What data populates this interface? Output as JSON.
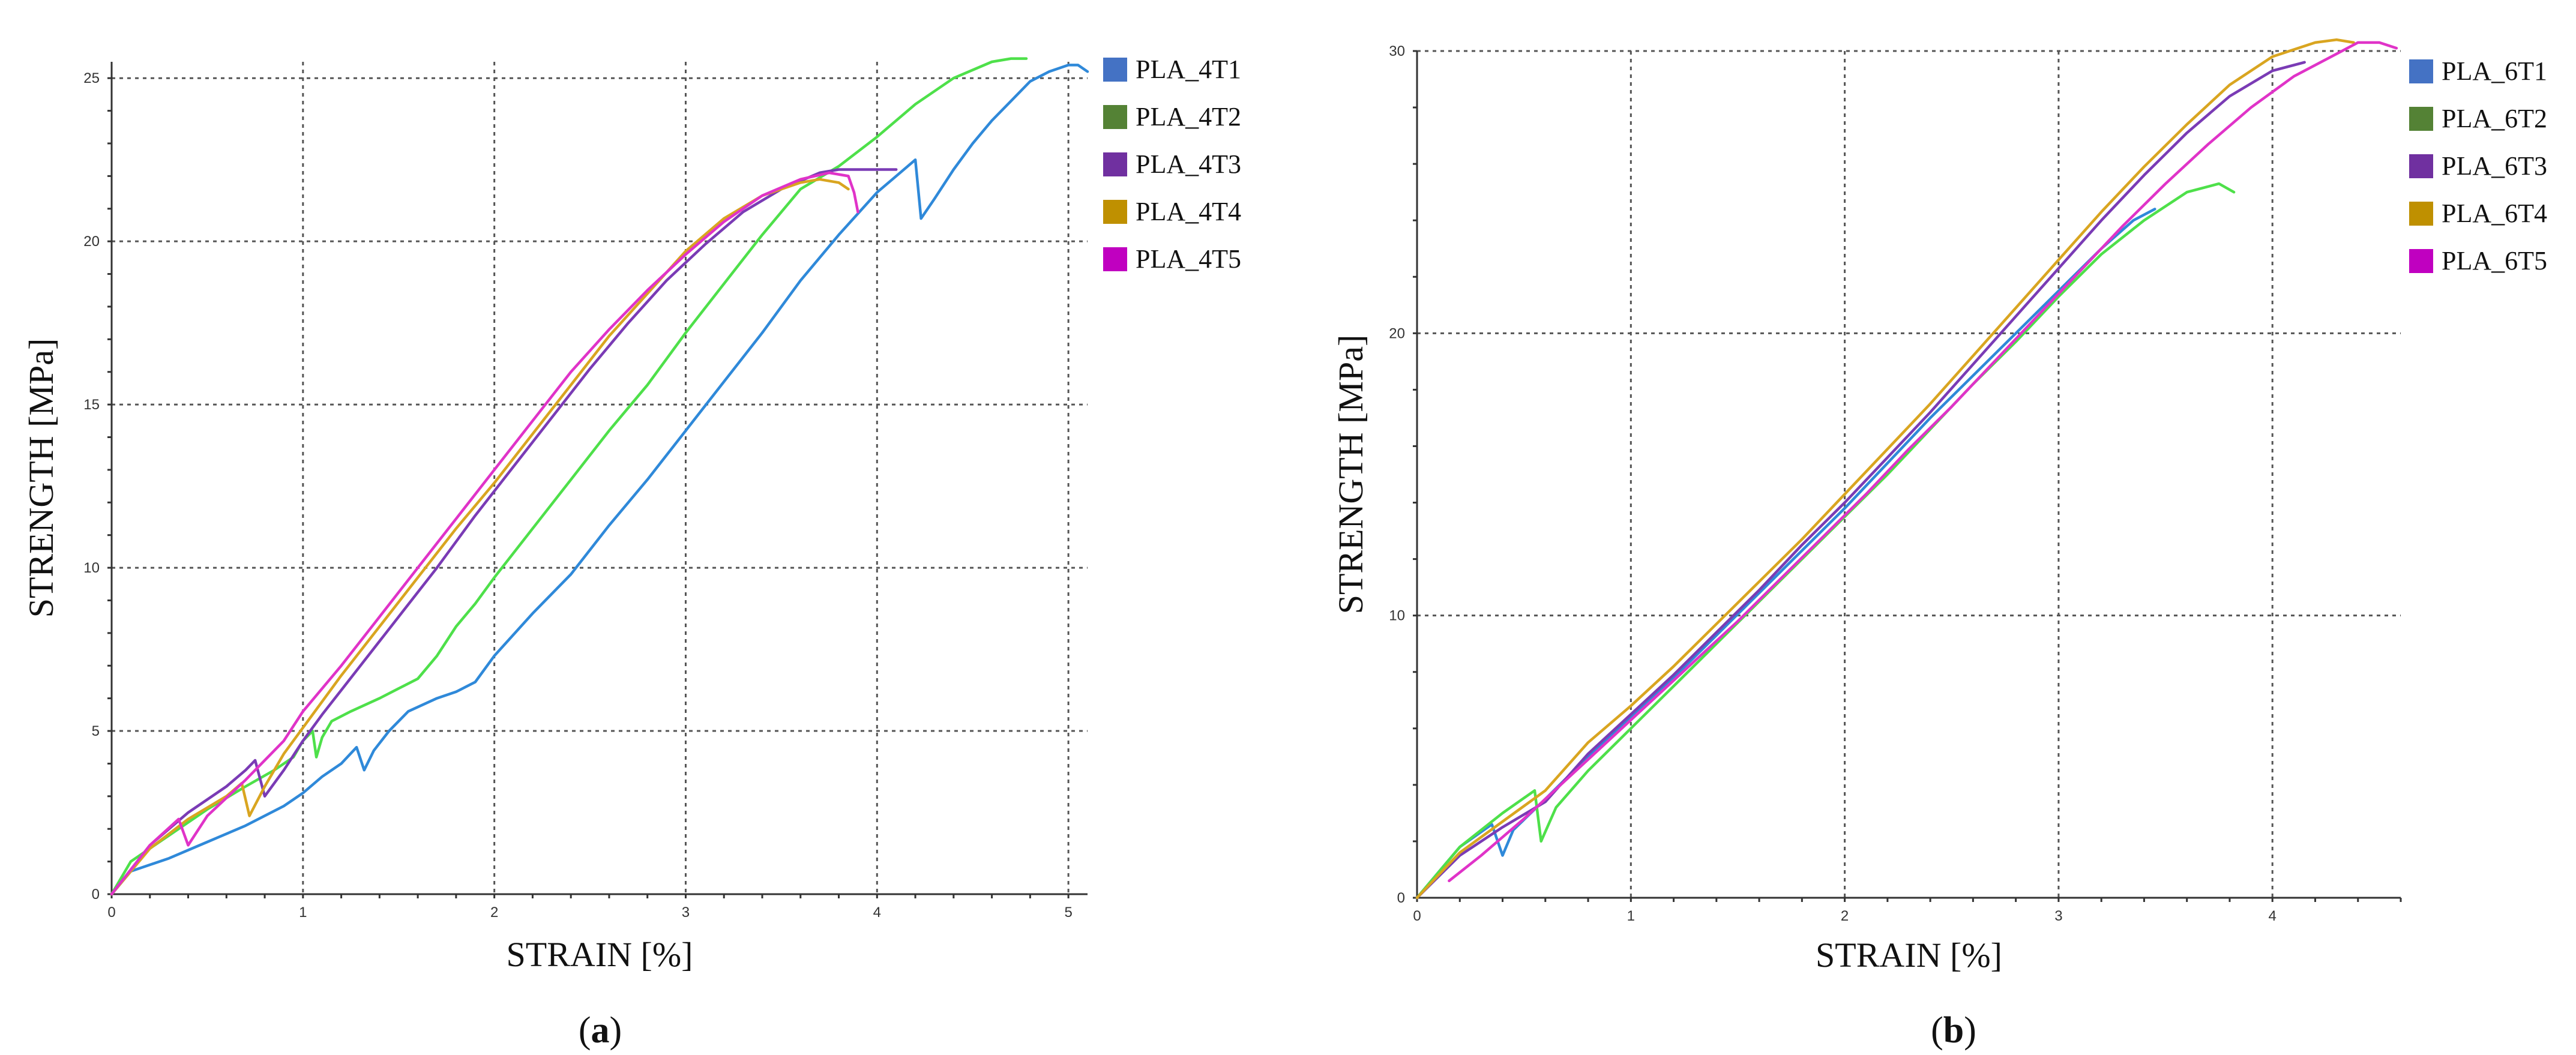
{
  "chart_data": [
    {
      "type": "line",
      "xlabel": "STRAIN [%]",
      "ylabel": "STRENGTH [MPa]",
      "xlim": [
        0,
        5.1
      ],
      "ylim": [
        0,
        25.5
      ],
      "xticks": [
        "0",
        "1",
        "2",
        "3",
        "4",
        "5"
      ],
      "yticks": [
        "0",
        "5",
        "10",
        "15",
        "20",
        "25"
      ],
      "grid": true,
      "legend_position": "right",
      "panel_label": {
        "open": "(",
        "letter": "a",
        "close": ")"
      },
      "series": [
        {
          "name": "PLA_4T1",
          "legend_color": "#4472C4",
          "line_color": "#2F89D9",
          "x": [
            0,
            0.1,
            0.3,
            0.5,
            0.7,
            0.9,
            1.0,
            1.1,
            1.2,
            1.28,
            1.32,
            1.37,
            1.45,
            1.55,
            1.7,
            1.8,
            1.9,
            2.0,
            2.2,
            2.4,
            2.6,
            2.8,
            3.0,
            3.2,
            3.4,
            3.6,
            3.8,
            4.0,
            4.1,
            4.2,
            4.23,
            4.3,
            4.4,
            4.5,
            4.6,
            4.7,
            4.8,
            4.9,
            5.0,
            5.05,
            5.1
          ],
          "y": [
            0,
            0.7,
            1.1,
            1.6,
            2.1,
            2.7,
            3.1,
            3.6,
            4.0,
            4.5,
            3.8,
            4.4,
            5.0,
            5.6,
            6.0,
            6.2,
            6.5,
            7.3,
            8.6,
            9.8,
            11.3,
            12.7,
            14.2,
            15.7,
            17.2,
            18.8,
            20.2,
            21.5,
            22.0,
            22.5,
            20.7,
            21.3,
            22.2,
            23.0,
            23.7,
            24.3,
            24.9,
            25.2,
            25.4,
            25.4,
            25.2
          ]
        },
        {
          "name": "PLA_4T2",
          "legend_color": "#548235",
          "line_color": "#4EE04A",
          "x": [
            0,
            0.1,
            0.3,
            0.5,
            0.7,
            0.85,
            0.95,
            1.0,
            1.05,
            1.07,
            1.1,
            1.15,
            1.25,
            1.4,
            1.5,
            1.6,
            1.7,
            1.8,
            1.9,
            2.0,
            2.2,
            2.4,
            2.6,
            2.8,
            3.0,
            3.2,
            3.4,
            3.6,
            3.8,
            4.0,
            4.2,
            4.4,
            4.6,
            4.7,
            4.78
          ],
          "y": [
            0,
            1.0,
            1.8,
            2.6,
            3.3,
            3.8,
            4.2,
            4.7,
            5.0,
            4.2,
            4.8,
            5.3,
            5.6,
            6.0,
            6.3,
            6.6,
            7.3,
            8.2,
            8.9,
            9.7,
            11.2,
            12.7,
            14.2,
            15.6,
            17.2,
            18.7,
            20.2,
            21.6,
            22.3,
            23.2,
            24.2,
            25.0,
            25.5,
            25.6,
            25.6
          ]
        },
        {
          "name": "PLA_4T3",
          "legend_color": "#7030A0",
          "line_color": "#7A3BB5",
          "x": [
            0,
            0.2,
            0.4,
            0.6,
            0.7,
            0.75,
            0.8,
            0.9,
            1.0,
            1.1,
            1.3,
            1.5,
            1.7,
            1.9,
            2.1,
            2.3,
            2.5,
            2.7,
            2.9,
            3.1,
            3.3,
            3.5,
            3.7,
            3.8,
            3.9,
            4.0,
            4.1
          ],
          "y": [
            0,
            1.5,
            2.5,
            3.3,
            3.8,
            4.1,
            3.0,
            3.8,
            4.7,
            5.5,
            7.0,
            8.5,
            10.0,
            11.6,
            13.1,
            14.6,
            16.1,
            17.5,
            18.8,
            19.9,
            20.9,
            21.6,
            22.1,
            22.2,
            22.2,
            22.2,
            22.2
          ]
        },
        {
          "name": "PLA_4T4",
          "legend_color": "#BF9000",
          "line_color": "#D9A520",
          "x": [
            0,
            0.2,
            0.4,
            0.6,
            0.68,
            0.72,
            0.8,
            0.9,
            1.0,
            1.2,
            1.4,
            1.6,
            1.8,
            2.0,
            2.2,
            2.4,
            2.6,
            2.8,
            3.0,
            3.2,
            3.4,
            3.6,
            3.7,
            3.8,
            3.85
          ],
          "y": [
            0,
            1.4,
            2.3,
            3.0,
            3.4,
            2.4,
            3.3,
            4.3,
            5.1,
            6.7,
            8.2,
            9.7,
            11.2,
            12.6,
            14.1,
            15.6,
            17.1,
            18.4,
            19.7,
            20.7,
            21.4,
            21.8,
            21.9,
            21.8,
            21.6
          ]
        },
        {
          "name": "PLA_4T5",
          "legend_color": "#C000C0",
          "line_color": "#E033C8",
          "x": [
            0,
            0.2,
            0.35,
            0.4,
            0.5,
            0.7,
            0.9,
            1.0,
            1.2,
            1.4,
            1.6,
            1.8,
            2.0,
            2.2,
            2.4,
            2.6,
            2.8,
            3.0,
            3.2,
            3.4,
            3.6,
            3.75,
            3.85,
            3.88,
            3.9
          ],
          "y": [
            0,
            1.5,
            2.3,
            1.5,
            2.4,
            3.5,
            4.7,
            5.6,
            7.0,
            8.5,
            10.0,
            11.5,
            13.0,
            14.5,
            16.0,
            17.3,
            18.5,
            19.6,
            20.6,
            21.4,
            21.9,
            22.1,
            22.0,
            21.5,
            20.9
          ]
        }
      ]
    },
    {
      "type": "line",
      "xlabel": "STRAIN [%]",
      "ylabel": "STRENGTH [MPa]",
      "xlim": [
        0,
        4.6
      ],
      "ylim": [
        0,
        30
      ],
      "xticks": [
        "0",
        "1",
        "2",
        "3",
        "4"
      ],
      "yticks": [
        "0",
        "10",
        "20",
        "30"
      ],
      "grid": true,
      "legend_position": "right",
      "panel_label": {
        "open": "(",
        "letter": "b",
        "close": ")"
      },
      "series": [
        {
          "name": "PLA_6T1",
          "legend_color": "#4472C4",
          "line_color": "#2F89D9",
          "x": [
            0,
            0.2,
            0.35,
            0.4,
            0.45,
            0.6,
            0.8,
            1.0,
            1.2,
            1.4,
            1.6,
            1.8,
            2.0,
            2.2,
            2.4,
            2.6,
            2.8,
            3.0,
            3.2,
            3.35,
            3.45
          ],
          "y": [
            0,
            1.8,
            2.6,
            1.5,
            2.4,
            3.5,
            5.0,
            6.4,
            7.8,
            9.3,
            10.8,
            12.3,
            13.8,
            15.4,
            17.0,
            18.5,
            20.0,
            21.5,
            23.0,
            24.0,
            24.4
          ]
        },
        {
          "name": "PLA_6T2",
          "legend_color": "#548235",
          "line_color": "#4EE04A",
          "x": [
            0,
            0.2,
            0.4,
            0.55,
            0.58,
            0.65,
            0.8,
            1.0,
            1.2,
            1.4,
            1.6,
            1.8,
            2.0,
            2.2,
            2.4,
            2.6,
            2.8,
            3.0,
            3.2,
            3.4,
            3.6,
            3.75,
            3.82
          ],
          "y": [
            0,
            1.8,
            3.0,
            3.8,
            2.0,
            3.2,
            4.5,
            6.0,
            7.5,
            9.0,
            10.5,
            12.0,
            13.5,
            15.0,
            16.6,
            18.2,
            19.7,
            21.3,
            22.8,
            24.0,
            25.0,
            25.3,
            25.0
          ]
        },
        {
          "name": "PLA_6T3",
          "legend_color": "#7030A0",
          "line_color": "#7A3BB5",
          "x": [
            0,
            0.2,
            0.4,
            0.6,
            0.8,
            1.0,
            1.2,
            1.4,
            1.6,
            1.8,
            2.0,
            2.2,
            2.4,
            2.6,
            2.8,
            3.0,
            3.2,
            3.4,
            3.6,
            3.8,
            4.0,
            4.15
          ],
          "y": [
            0,
            1.5,
            2.5,
            3.4,
            5.1,
            6.5,
            7.9,
            9.4,
            10.9,
            12.5,
            14.0,
            15.6,
            17.2,
            18.9,
            20.6,
            22.3,
            24.0,
            25.6,
            27.1,
            28.4,
            29.3,
            29.6
          ]
        },
        {
          "name": "PLA_6T4",
          "legend_color": "#BF9000",
          "line_color": "#D9A520",
          "x": [
            0,
            0.2,
            0.4,
            0.6,
            0.8,
            1.0,
            1.2,
            1.4,
            1.6,
            1.8,
            2.0,
            2.2,
            2.4,
            2.6,
            2.8,
            3.0,
            3.2,
            3.4,
            3.6,
            3.8,
            4.0,
            4.2,
            4.3,
            4.38
          ],
          "y": [
            0,
            1.6,
            2.7,
            3.8,
            5.5,
            6.8,
            8.2,
            9.7,
            11.2,
            12.7,
            14.3,
            15.9,
            17.5,
            19.2,
            20.9,
            22.6,
            24.3,
            25.9,
            27.4,
            28.8,
            29.8,
            30.3,
            30.4,
            30.3
          ]
        },
        {
          "name": "PLA_6T5",
          "legend_color": "#C000C0",
          "line_color": "#E033C8",
          "x": [
            0.15,
            0.3,
            0.5,
            0.7,
            0.9,
            1.1,
            1.3,
            1.5,
            1.7,
            1.9,
            2.1,
            2.3,
            2.5,
            2.7,
            2.9,
            3.1,
            3.3,
            3.5,
            3.7,
            3.9,
            4.1,
            4.3,
            4.4,
            4.5,
            4.58
          ],
          "y": [
            0.6,
            1.5,
            2.8,
            4.2,
            5.6,
            7.0,
            8.4,
            9.8,
            11.3,
            12.8,
            14.3,
            15.9,
            17.4,
            19.0,
            20.6,
            22.2,
            23.8,
            25.3,
            26.7,
            28.0,
            29.1,
            29.9,
            30.3,
            30.3,
            30.1
          ]
        }
      ]
    }
  ]
}
